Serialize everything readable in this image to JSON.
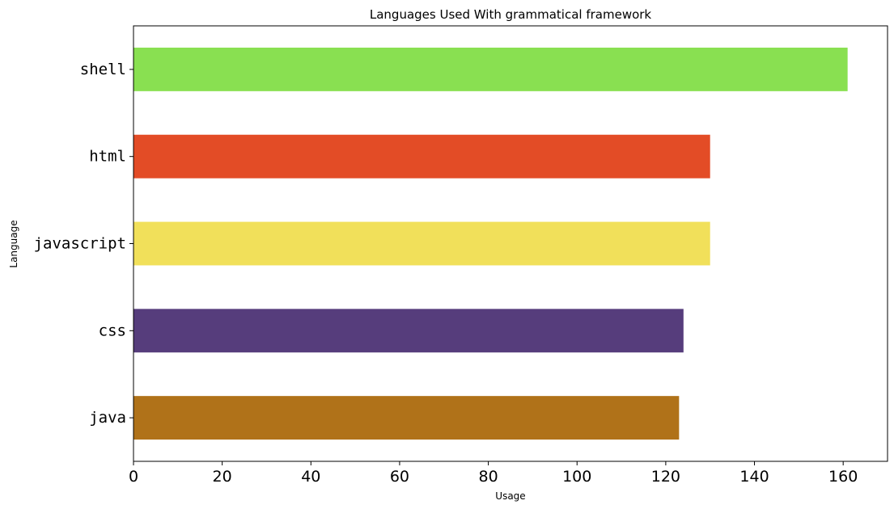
{
  "chart_data": {
    "type": "bar",
    "orientation": "horizontal",
    "title": "Languages Used With grammatical framework",
    "xlabel": "Usage",
    "ylabel": "Language",
    "xlim": [
      0,
      170
    ],
    "xticks": [
      0,
      20,
      40,
      60,
      80,
      100,
      120,
      140,
      160
    ],
    "grid": false,
    "legend": "none",
    "categories": [
      "shell",
      "html",
      "javascript",
      "css",
      "java"
    ],
    "values": [
      161,
      130,
      130,
      124,
      123
    ],
    "colors": [
      "#89e051",
      "#e34c26",
      "#f1e05a",
      "#563d7c",
      "#b07219"
    ]
  }
}
